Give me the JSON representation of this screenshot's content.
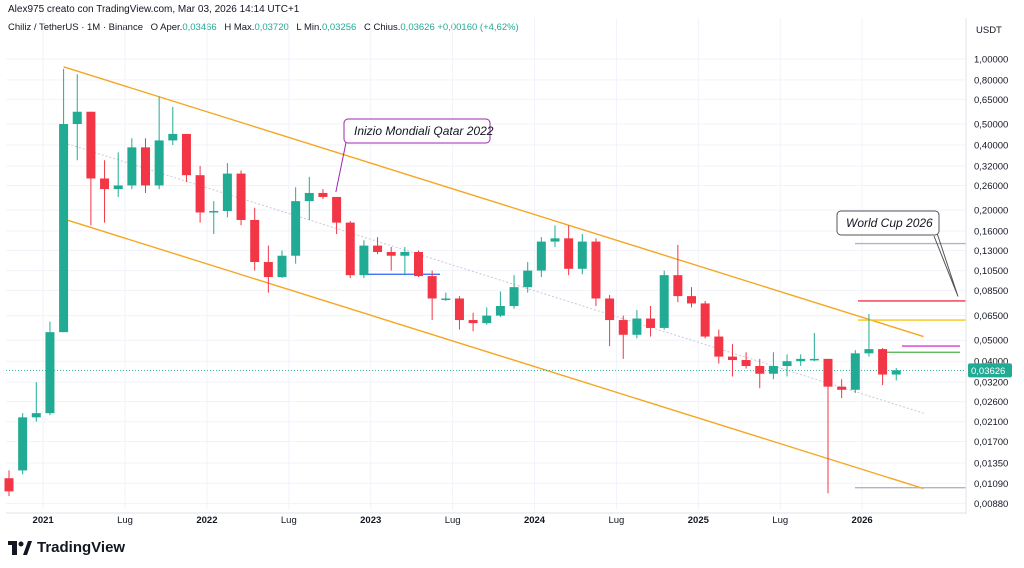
{
  "header": {
    "author_line": "Alex975 creato con TradingView.com, Mar 03, 2026 14:14 UTC+1"
  },
  "legend": {
    "symbol": "Chiliz / TetherUS · 1M · Binance",
    "open_label": "O",
    "open_text": "Aper.",
    "open_value": "0,03466",
    "high_label": "H",
    "high_text": "Max.",
    "high_value": "0,03720",
    "low_label": "L",
    "low_text": "Min.",
    "low_value": "0,03256",
    "close_label": "C",
    "close_text": "Chius.",
    "close_value": "0,03626",
    "change_value": "+0,00160 (+4,62%)"
  },
  "brand": {
    "name": "TradingView"
  },
  "colors": {
    "up": "#22ab94",
    "down": "#f23645",
    "channel": "#f5a623",
    "grid": "#f0f3fa",
    "price_tag": "#22ab94"
  },
  "chart_data": {
    "type": "candlestick",
    "symbol": "CHZUSDT",
    "timeframe": "1M",
    "exchange": "Binance",
    "y_scale": "log",
    "y_range": [
      0.0082,
      1.25
    ],
    "currency_label": "USDT",
    "y_ticks": [
      "1,00000",
      "0,80000",
      "0,65000",
      "0,50000",
      "0,40000",
      "0,32000",
      "0,26000",
      "0,20000",
      "0,16000",
      "0,13000",
      "0,10500",
      "0,08500",
      "0,06500",
      "0,05000",
      "0,04000",
      "0,03200",
      "0,02600",
      "0,02100",
      "0,01700",
      "0,01350",
      "0,01090",
      "0,00880"
    ],
    "y_tick_values": [
      1.0,
      0.8,
      0.65,
      0.5,
      0.4,
      0.32,
      0.26,
      0.2,
      0.16,
      0.13,
      0.105,
      0.085,
      0.065,
      0.05,
      0.04,
      0.032,
      0.026,
      0.021,
      0.017,
      0.0135,
      0.0109,
      0.0088
    ],
    "x_ticks": [
      {
        "label": "2021",
        "index": 2.5
      },
      {
        "label": "Lug",
        "index": 8.5
      },
      {
        "label": "2022",
        "index": 14.5
      },
      {
        "label": "Lug",
        "index": 20.5
      },
      {
        "label": "2023",
        "index": 26.5
      },
      {
        "label": "Lug",
        "index": 32.5
      },
      {
        "label": "2024",
        "index": 38.5
      },
      {
        "label": "Lug",
        "index": 44.5
      },
      {
        "label": "2025",
        "index": 50.5
      },
      {
        "label": "Lug",
        "index": 56.5
      },
      {
        "label": "2026",
        "index": 62.5
      }
    ],
    "candles": [
      {
        "o": 0.0115,
        "h": 0.0125,
        "l": 0.0095,
        "c": 0.01
      },
      {
        "o": 0.0125,
        "h": 0.023,
        "l": 0.012,
        "c": 0.022
      },
      {
        "o": 0.022,
        "h": 0.032,
        "l": 0.021,
        "c": 0.023
      },
      {
        "o": 0.023,
        "h": 0.061,
        "l": 0.0225,
        "c": 0.0545
      },
      {
        "o": 0.0545,
        "h": 0.9,
        "l": 0.0545,
        "c": 0.5
      },
      {
        "o": 0.5,
        "h": 0.85,
        "l": 0.34,
        "c": 0.57
      },
      {
        "o": 0.57,
        "h": 0.57,
        "l": 0.17,
        "c": 0.28
      },
      {
        "o": 0.28,
        "h": 0.34,
        "l": 0.175,
        "c": 0.25
      },
      {
        "o": 0.25,
        "h": 0.37,
        "l": 0.23,
        "c": 0.26
      },
      {
        "o": 0.26,
        "h": 0.43,
        "l": 0.25,
        "c": 0.39
      },
      {
        "o": 0.39,
        "h": 0.43,
        "l": 0.24,
        "c": 0.26
      },
      {
        "o": 0.26,
        "h": 0.67,
        "l": 0.25,
        "c": 0.42
      },
      {
        "o": 0.42,
        "h": 0.6,
        "l": 0.4,
        "c": 0.45
      },
      {
        "o": 0.45,
        "h": 0.45,
        "l": 0.27,
        "c": 0.29
      },
      {
        "o": 0.29,
        "h": 0.32,
        "l": 0.175,
        "c": 0.195
      },
      {
        "o": 0.195,
        "h": 0.22,
        "l": 0.155,
        "c": 0.198
      },
      {
        "o": 0.198,
        "h": 0.33,
        "l": 0.185,
        "c": 0.295
      },
      {
        "o": 0.295,
        "h": 0.305,
        "l": 0.17,
        "c": 0.18
      },
      {
        "o": 0.18,
        "h": 0.205,
        "l": 0.105,
        "c": 0.115
      },
      {
        "o": 0.115,
        "h": 0.137,
        "l": 0.083,
        "c": 0.098
      },
      {
        "o": 0.098,
        "h": 0.13,
        "l": 0.097,
        "c": 0.123
      },
      {
        "o": 0.123,
        "h": 0.255,
        "l": 0.113,
        "c": 0.22
      },
      {
        "o": 0.22,
        "h": 0.285,
        "l": 0.18,
        "c": 0.24
      },
      {
        "o": 0.24,
        "h": 0.25,
        "l": 0.225,
        "c": 0.23
      },
      {
        "o": 0.23,
        "h": 0.23,
        "l": 0.155,
        "c": 0.175
      },
      {
        "o": 0.175,
        "h": 0.178,
        "l": 0.097,
        "c": 0.1
      },
      {
        "o": 0.1,
        "h": 0.145,
        "l": 0.097,
        "c": 0.137
      },
      {
        "o": 0.137,
        "h": 0.15,
        "l": 0.125,
        "c": 0.128
      },
      {
        "o": 0.128,
        "h": 0.135,
        "l": 0.105,
        "c": 0.123
      },
      {
        "o": 0.123,
        "h": 0.135,
        "l": 0.1,
        "c": 0.128
      },
      {
        "o": 0.128,
        "h": 0.13,
        "l": 0.098,
        "c": 0.099
      },
      {
        "o": 0.099,
        "h": 0.105,
        "l": 0.062,
        "c": 0.078
      },
      {
        "o": 0.078,
        "h": 0.083,
        "l": 0.076,
        "c": 0.078
      },
      {
        "o": 0.078,
        "h": 0.08,
        "l": 0.056,
        "c": 0.062
      },
      {
        "o": 0.062,
        "h": 0.067,
        "l": 0.055,
        "c": 0.06
      },
      {
        "o": 0.06,
        "h": 0.071,
        "l": 0.059,
        "c": 0.065
      },
      {
        "o": 0.065,
        "h": 0.084,
        "l": 0.064,
        "c": 0.072
      },
      {
        "o": 0.072,
        "h": 0.1,
        "l": 0.07,
        "c": 0.088
      },
      {
        "o": 0.088,
        "h": 0.115,
        "l": 0.083,
        "c": 0.105
      },
      {
        "o": 0.105,
        "h": 0.15,
        "l": 0.098,
        "c": 0.143
      },
      {
        "o": 0.143,
        "h": 0.17,
        "l": 0.135,
        "c": 0.148
      },
      {
        "o": 0.148,
        "h": 0.17,
        "l": 0.1,
        "c": 0.107
      },
      {
        "o": 0.107,
        "h": 0.155,
        "l": 0.101,
        "c": 0.143
      },
      {
        "o": 0.143,
        "h": 0.148,
        "l": 0.072,
        "c": 0.078
      },
      {
        "o": 0.078,
        "h": 0.081,
        "l": 0.047,
        "c": 0.062
      },
      {
        "o": 0.062,
        "h": 0.065,
        "l": 0.041,
        "c": 0.053
      },
      {
        "o": 0.053,
        "h": 0.069,
        "l": 0.051,
        "c": 0.063
      },
      {
        "o": 0.063,
        "h": 0.072,
        "l": 0.052,
        "c": 0.057
      },
      {
        "o": 0.057,
        "h": 0.105,
        "l": 0.056,
        "c": 0.1
      },
      {
        "o": 0.1,
        "h": 0.138,
        "l": 0.075,
        "c": 0.08
      },
      {
        "o": 0.08,
        "h": 0.088,
        "l": 0.071,
        "c": 0.074
      },
      {
        "o": 0.074,
        "h": 0.076,
        "l": 0.051,
        "c": 0.052
      },
      {
        "o": 0.052,
        "h": 0.056,
        "l": 0.039,
        "c": 0.042
      },
      {
        "o": 0.042,
        "h": 0.048,
        "l": 0.034,
        "c": 0.0405
      },
      {
        "o": 0.0405,
        "h": 0.044,
        "l": 0.037,
        "c": 0.038
      },
      {
        "o": 0.038,
        "h": 0.041,
        "l": 0.03,
        "c": 0.035
      },
      {
        "o": 0.035,
        "h": 0.044,
        "l": 0.033,
        "c": 0.038
      },
      {
        "o": 0.038,
        "h": 0.043,
        "l": 0.034,
        "c": 0.04
      },
      {
        "o": 0.04,
        "h": 0.043,
        "l": 0.038,
        "c": 0.041
      },
      {
        "o": 0.041,
        "h": 0.054,
        "l": 0.04,
        "c": 0.041
      },
      {
        "o": 0.041,
        "h": 0.041,
        "l": 0.0098,
        "c": 0.0305
      },
      {
        "o": 0.0305,
        "h": 0.033,
        "l": 0.027,
        "c": 0.0295
      },
      {
        "o": 0.0295,
        "h": 0.045,
        "l": 0.0285,
        "c": 0.0435
      },
      {
        "o": 0.0435,
        "h": 0.066,
        "l": 0.042,
        "c": 0.0455
      },
      {
        "o": 0.0455,
        "h": 0.046,
        "l": 0.031,
        "c": 0.0347
      },
      {
        "o": 0.0347,
        "h": 0.0372,
        "l": 0.0326,
        "c": 0.0363
      }
    ],
    "channel_upper": [
      {
        "index": 4,
        "value": 0.92
      },
      {
        "index": 67,
        "value": 0.052
      }
    ],
    "channel_lower": [
      {
        "index": 4,
        "value": 0.182
      },
      {
        "index": 67,
        "value": 0.0103
      }
    ],
    "channel_mid": [
      {
        "index": 4,
        "value": 0.41
      },
      {
        "index": 67,
        "value": 0.023
      }
    ],
    "horizontal_levels": [
      {
        "name": "red-level",
        "value": 0.076,
        "color": "#f23645"
      },
      {
        "name": "yellow-level",
        "value": 0.062,
        "color": "#f5c518"
      },
      {
        "name": "purple-level",
        "value": 0.047,
        "color": "#d33bd3"
      },
      {
        "name": "green-level",
        "value": 0.044,
        "color": "#4caf50"
      },
      {
        "name": "gray-level",
        "value": 0.14,
        "color": "#b2b5be"
      },
      {
        "name": "gray-low-level",
        "value": 0.0104,
        "color": "#b2b5be"
      },
      {
        "name": "blue-level",
        "value": 0.101,
        "color": "#2962ff"
      }
    ],
    "current_price": 0.03626,
    "current_price_label": "0,03626",
    "annotations": [
      {
        "text": "Inizio Mondiali Qatar 2022",
        "index": 23.8,
        "value": 0.24
      },
      {
        "text": "World Cup 2026",
        "index": 66.5,
        "value": 0.078
      }
    ]
  }
}
